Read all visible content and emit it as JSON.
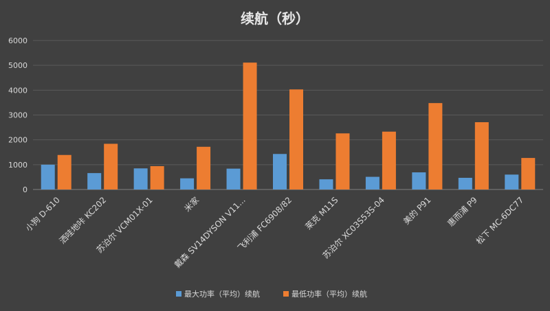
{
  "chart_data": {
    "type": "bar",
    "title": "续航（秒）",
    "categories": [
      "小狗 D-610",
      "洒哇地咔 KC202",
      "苏泊尔 VCM01X-01",
      "米家",
      "戴森 SV14DYSON V11...",
      "飞利浦 FC6908/82",
      "莱克 M11S",
      "苏泊尔 XC03S53S-04",
      "美的 P91",
      "惠而浦 P9",
      "松下 MC-6DC77"
    ],
    "series": [
      {
        "name": "最大功率（平均）续航",
        "color": "#5b9bd5",
        "values": [
          1000,
          660,
          850,
          450,
          840,
          1430,
          410,
          510,
          690,
          470,
          600
        ]
      },
      {
        "name": "最低功率（平均）续航",
        "color": "#ed7d31",
        "values": [
          1390,
          1840,
          940,
          1720,
          5110,
          4030,
          2260,
          2330,
          3480,
          2710,
          1270
        ]
      }
    ],
    "ylim": [
      0,
      6000
    ],
    "yticks": [
      0,
      1000,
      2000,
      3000,
      4000,
      5000,
      6000
    ],
    "xlabel": "",
    "ylabel": "",
    "grid": true,
    "legend_position": "bottom"
  }
}
